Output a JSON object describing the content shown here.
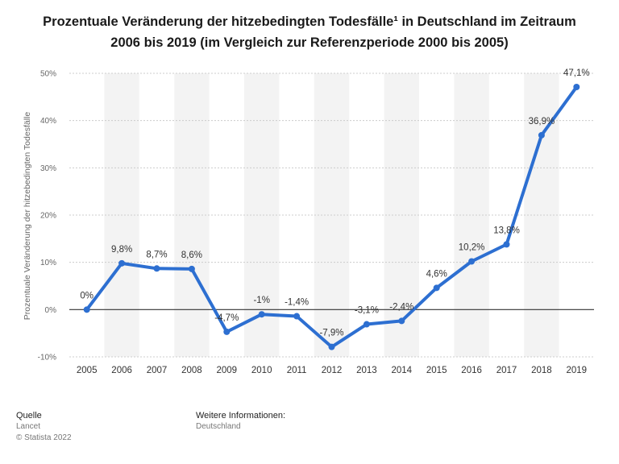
{
  "title_line1": "Prozentuale Veränderung der hitzebedingten Todesfälle¹ in Deutschland im Zeitraum",
  "title_line2": "2006 bis 2019 (im Vergleich zur Referenzperiode 2000 bis 2005)",
  "colors": {
    "line": "#2d6fd1",
    "band": "#f3f3f3",
    "grid": "#cccccc",
    "zero": "#333333"
  },
  "chart_data": {
    "type": "line",
    "categories": [
      "2005",
      "2006",
      "2007",
      "2008",
      "2009",
      "2010",
      "2011",
      "2012",
      "2013",
      "2014",
      "2015",
      "2016",
      "2017",
      "2018",
      "2019"
    ],
    "values": [
      0,
      9.8,
      8.7,
      8.6,
      -4.7,
      -1,
      -1.4,
      -7.9,
      -3.1,
      -2.4,
      4.6,
      10.2,
      13.8,
      36.9,
      47.1
    ],
    "data_labels": [
      "0%",
      "9,8%",
      "8,7%",
      "8,6%",
      "-4,7%",
      "-1%",
      "-1,4%",
      "-7,9%",
      "-3,1%",
      "-2,4%",
      "4,6%",
      "10,2%",
      "13,8%",
      "36,9%",
      "47,1%"
    ],
    "ylabel": "Prozentuale Veränderung der hitzebedingten Todesfälle",
    "ylim": [
      -10,
      50
    ],
    "yticks": [
      -10,
      0,
      10,
      20,
      30,
      40,
      50
    ],
    "ytick_labels": [
      "-10%",
      "0%",
      "10%",
      "20%",
      "30%",
      "40%",
      "50%"
    ],
    "grid": true
  },
  "footer": {
    "source_heading": "Quelle",
    "source_name": "Lancet",
    "copyright": "© Statista 2022",
    "info_heading": "Weitere Informationen:",
    "info_value": "Deutschland"
  }
}
